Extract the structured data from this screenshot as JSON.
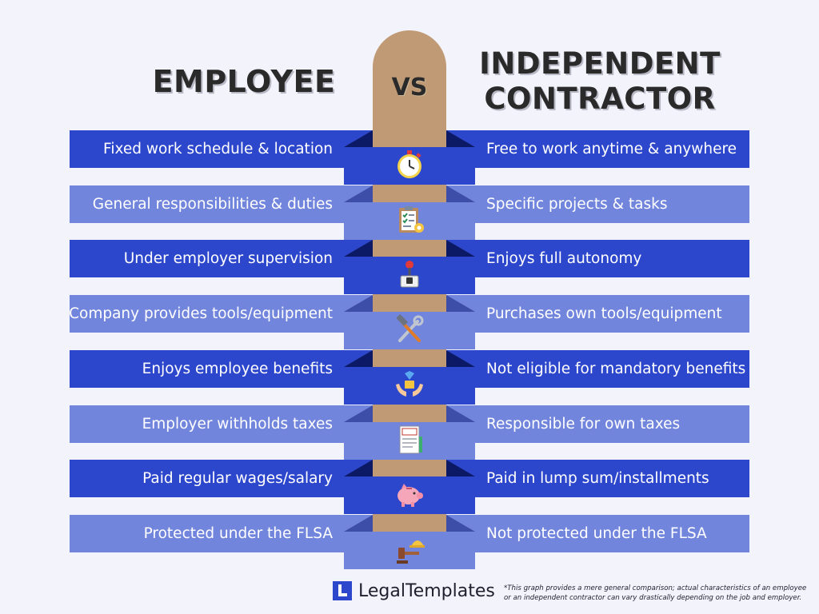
{
  "header": {
    "employee_title": "EMPLOYEE",
    "vs_label": "VS",
    "contractor_title_line1": "INDEPENDENT",
    "contractor_title_line2": "CONTRACTOR"
  },
  "rows": [
    {
      "employee": "Fixed work schedule & location",
      "contractor": "Free to work anytime & anywhere",
      "icon": "stopwatch-icon"
    },
    {
      "employee": "General responsibilities & duties",
      "contractor": "Specific projects & tasks",
      "icon": "checklist-clipboard-icon"
    },
    {
      "employee": "Under employer supervision",
      "contractor": "Enjoys full autonomy",
      "icon": "joystick-icon"
    },
    {
      "employee": "Company provides tools/equipment",
      "contractor": "Purchases own tools/equipment",
      "icon": "hammer-wrench-icon"
    },
    {
      "employee": "Enjoys employee benefits",
      "contractor": "Not eligible for mandatory benefits",
      "icon": "hands-gift-icon"
    },
    {
      "employee": "Employer withholds taxes",
      "contractor": "Responsible for own taxes",
      "icon": "tax-document-icon"
    },
    {
      "employee": "Paid regular wages/salary",
      "contractor": "Paid in lump sum/installments",
      "icon": "piggy-bank-icon"
    },
    {
      "employee": "Protected under the FLSA",
      "contractor": "Not protected under the FLSA",
      "icon": "gavel-helmet-icon"
    }
  ],
  "colors": {
    "dark_band": "#2d47cc",
    "light_band": "#7285dd",
    "pillar": "#bf9a74",
    "background": "#f3f3fb"
  },
  "footer": {
    "brand": "LegalTemplates",
    "logo_icon": "legaltemplates-logo-icon",
    "disclaimer_line1": "*This graph provides a mere general comparison; actual characteristics of an employee",
    "disclaimer_line2": "or an independent contractor can vary drastically depending on the job and employer."
  }
}
